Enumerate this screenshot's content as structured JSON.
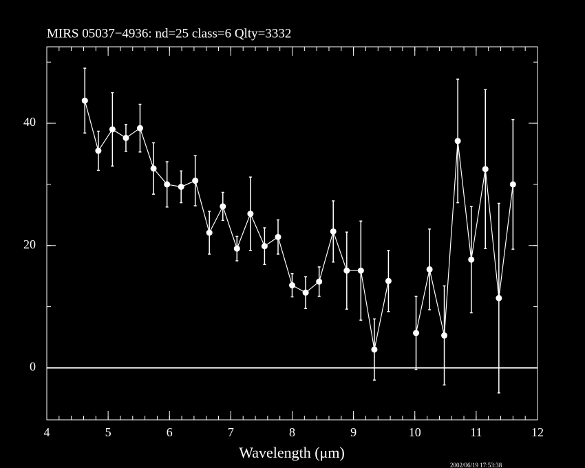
{
  "chart_data": {
    "type": "line",
    "title": "MIRS 05037−4936:    nd=25    class=6    Qlty=3332",
    "x_label": "Wavelength (μm)",
    "timestamp": "2002/06/19 17:53:38",
    "x": [
      4.62,
      4.84,
      5.07,
      5.29,
      5.52,
      5.74,
      5.96,
      6.19,
      6.42,
      6.65,
      6.87,
      7.1,
      7.32,
      7.55,
      7.77,
      8.0,
      8.22,
      8.44,
      8.67,
      8.89,
      9.12,
      9.34,
      9.57,
      null,
      10.02,
      10.24,
      10.48,
      10.7,
      10.92,
      11.15,
      11.37,
      11.6
    ],
    "values": [
      43.7,
      35.5,
      39.0,
      37.6,
      39.2,
      32.6,
      30.0,
      29.6,
      30.6,
      22.1,
      26.4,
      19.5,
      25.2,
      19.9,
      21.4,
      13.5,
      12.3,
      14.1,
      22.3,
      15.9,
      15.9,
      3.0,
      14.2,
      null,
      5.7,
      16.1,
      5.3,
      37.1,
      17.7,
      32.5,
      11.4,
      30.0
    ],
    "errors": [
      5.3,
      3.2,
      6.0,
      2.2,
      3.9,
      4.2,
      3.7,
      2.6,
      4.1,
      3.5,
      2.3,
      2.0,
      6.0,
      3.0,
      2.8,
      1.9,
      2.6,
      2.4,
      5.0,
      6.3,
      8.1,
      5.0,
      5.0,
      null,
      6.0,
      6.6,
      8.1,
      10.1,
      8.7,
      13.0,
      15.5,
      10.6
    ],
    "color": "#ffffff",
    "background": "#000000",
    "xlim": [
      4,
      12
    ],
    "ylim": [
      -8.5,
      52.5
    ],
    "xticks": [
      4,
      5,
      6,
      7,
      8,
      9,
      10,
      11,
      12
    ],
    "yticks": [
      0,
      20,
      40
    ],
    "x_minor_step": 0.2,
    "y_minor_step": 10,
    "hline": 0
  }
}
